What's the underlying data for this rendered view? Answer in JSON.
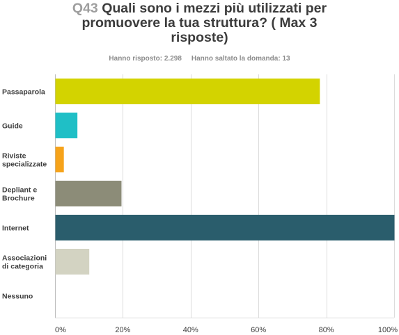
{
  "question": {
    "number": "Q43",
    "title_line1": "Quali sono i mezzi più utilizzati per",
    "title_line2": "promuovere la tua struttura? ( Max 3",
    "title_line3": "risposte)"
  },
  "stats": {
    "answered": "Hanno risposto: 2.298",
    "skipped": "Hanno saltato la domanda: 13"
  },
  "chart_data": {
    "type": "bar",
    "orientation": "horizontal",
    "categories": [
      [
        "Passaparola"
      ],
      [
        "Guide"
      ],
      [
        "Riviste",
        "specializzate"
      ],
      [
        "Depliant e",
        "Brochure"
      ],
      [
        "Internet"
      ],
      [
        "Associazioni",
        "di categoria"
      ],
      [
        "Nessuno"
      ]
    ],
    "values": [
      78,
      6.5,
      2.5,
      19.5,
      100,
      10,
      0
    ],
    "colors": [
      "#d3d300",
      "#1fbfc6",
      "#f6a31a",
      "#8c8c78",
      "#2a5d6c",
      "#d3d3c2",
      "#cccccc"
    ],
    "xlim": [
      0,
      100
    ],
    "xticks": [
      "0%",
      "20%",
      "40%",
      "60%",
      "80%",
      "100%"
    ],
    "grid": true
  }
}
